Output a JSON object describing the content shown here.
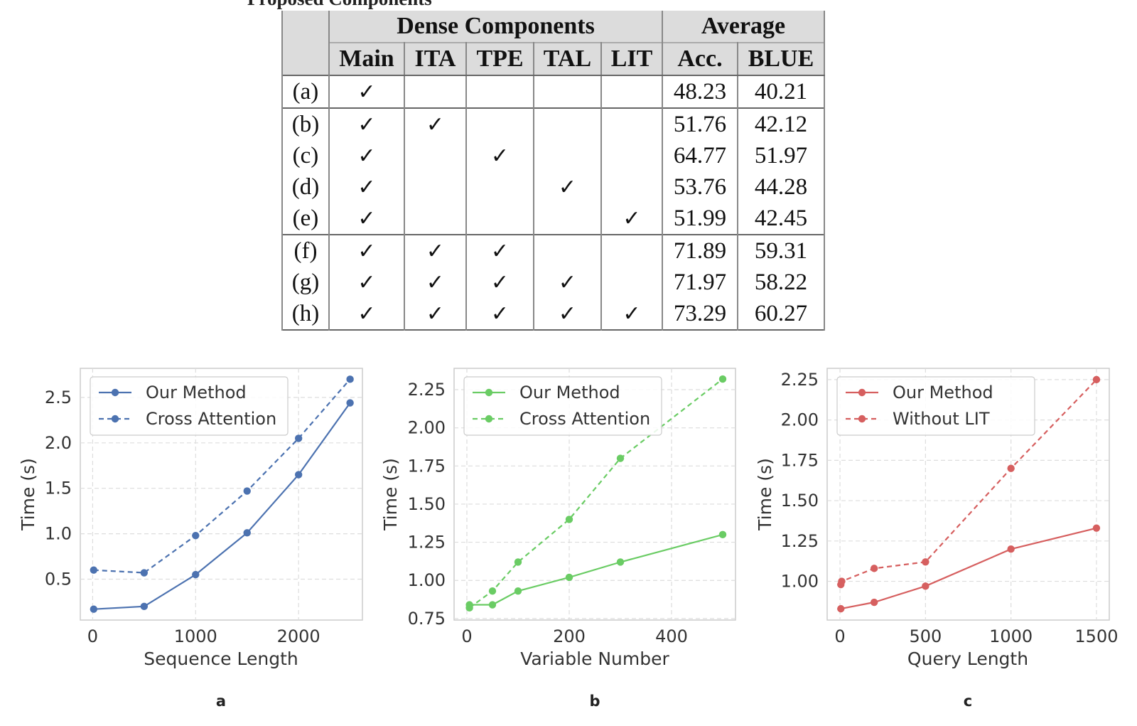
{
  "table": {
    "cut_title": "Proposed Components",
    "group_headers": [
      "Dense Components",
      "Average"
    ],
    "columns": [
      "Main",
      "ITA",
      "TPE",
      "TAL",
      "LIT",
      "Acc.",
      "BLUE"
    ],
    "check_glyph": "✓",
    "rows": [
      {
        "label": "(a)",
        "checks": [
          true,
          false,
          false,
          false,
          false
        ],
        "acc": "48.23",
        "blue": "40.21",
        "bold": false
      },
      {
        "label": "(b)",
        "checks": [
          true,
          true,
          false,
          false,
          false
        ],
        "acc": "51.76",
        "blue": "42.12",
        "bold": false
      },
      {
        "label": "(c)",
        "checks": [
          true,
          false,
          true,
          false,
          false
        ],
        "acc": "64.77",
        "blue": "51.97",
        "bold": false
      },
      {
        "label": "(d)",
        "checks": [
          true,
          false,
          false,
          true,
          false
        ],
        "acc": "53.76",
        "blue": "44.28",
        "bold": false
      },
      {
        "label": "(e)",
        "checks": [
          true,
          false,
          false,
          false,
          true
        ],
        "acc": "51.99",
        "blue": "42.45",
        "bold": false
      },
      {
        "label": "(f)",
        "checks": [
          true,
          true,
          true,
          false,
          false
        ],
        "acc": "71.89",
        "blue": "59.31",
        "bold": false
      },
      {
        "label": "(g)",
        "checks": [
          true,
          true,
          true,
          true,
          false
        ],
        "acc": "71.97",
        "blue": "58.22",
        "bold": false
      },
      {
        "label": "(h)",
        "checks": [
          true,
          true,
          true,
          true,
          true
        ],
        "acc": "73.29",
        "blue": "60.27",
        "bold": true
      }
    ]
  },
  "chart_data": [
    {
      "type": "line",
      "panel_label": "a",
      "xlabel": "Sequence Length",
      "ylabel": "Time (s)",
      "xlim": [
        -120,
        2620
      ],
      "ylim": [
        0.05,
        2.82
      ],
      "xticks": [
        0,
        1000,
        2000
      ],
      "xtick_labels": [
        "0",
        "1000",
        "2000"
      ],
      "yticks": [
        0.5,
        1.0,
        1.5,
        2.0,
        2.5
      ],
      "ytick_labels": [
        "0.5",
        "1.0",
        "1.5",
        "2.0",
        "2.5"
      ],
      "grid": true,
      "legend_position": "top-left",
      "color": "#4c72b0",
      "series": [
        {
          "name": "Our Method",
          "style": "solid",
          "x": [
            10,
            500,
            1000,
            1500,
            2000,
            2500
          ],
          "y": [
            0.17,
            0.2,
            0.55,
            1.01,
            1.65,
            2.44
          ]
        },
        {
          "name": "Cross Attention",
          "style": "dashed",
          "x": [
            10,
            500,
            1000,
            1500,
            2000,
            2500
          ],
          "y": [
            0.6,
            0.57,
            0.98,
            1.47,
            2.05,
            2.7
          ]
        }
      ]
    },
    {
      "type": "line",
      "panel_label": "b",
      "xlabel": "Variable Number",
      "ylabel": "Time (s)",
      "xlim": [
        -25,
        525
      ],
      "ylim": [
        0.74,
        2.39
      ],
      "xticks": [
        0,
        200,
        400
      ],
      "xtick_labels": [
        "0",
        "200",
        "400"
      ],
      "yticks": [
        0.75,
        1.0,
        1.25,
        1.5,
        1.75,
        2.0,
        2.25
      ],
      "ytick_labels": [
        "0.75",
        "1.00",
        "1.25",
        "1.50",
        "1.75",
        "2.00",
        "2.25"
      ],
      "grid": true,
      "legend_position": "top-left",
      "color": "#6acc64",
      "series": [
        {
          "name": "Our Method",
          "style": "solid",
          "x": [
            5,
            50,
            100,
            200,
            300,
            500
          ],
          "y": [
            0.84,
            0.84,
            0.93,
            1.02,
            1.12,
            1.3
          ]
        },
        {
          "name": "Cross Attention",
          "style": "dashed",
          "x": [
            5,
            50,
            100,
            200,
            300,
            500
          ],
          "y": [
            0.82,
            0.93,
            1.12,
            1.4,
            1.8,
            2.32
          ]
        }
      ]
    },
    {
      "type": "line",
      "panel_label": "c",
      "xlabel": "Query Length",
      "ylabel": "Time (s)",
      "xlim": [
        -75,
        1575
      ],
      "ylim": [
        0.76,
        2.32
      ],
      "xticks": [
        0,
        500,
        1000,
        1500
      ],
      "xtick_labels": [
        "0",
        "500",
        "1000",
        "1500"
      ],
      "yticks": [
        1.0,
        1.25,
        1.5,
        1.75,
        2.0,
        2.25
      ],
      "ytick_labels": [
        "1.00",
        "1.25",
        "1.50",
        "1.75",
        "2.00",
        "2.25"
      ],
      "grid": true,
      "legend_position": "top-left",
      "color": "#d65f5f",
      "series": [
        {
          "name": "Our Method",
          "style": "solid",
          "x": [
            5,
            200,
            500,
            1000,
            1500
          ],
          "y": [
            0.83,
            0.87,
            0.97,
            1.2,
            1.33
          ]
        },
        {
          "name": "Without LIT",
          "style": "dashed",
          "x": [
            5,
            10,
            200,
            500,
            1000,
            1500
          ],
          "y": [
            0.98,
            1.0,
            1.08,
            1.12,
            1.7,
            2.25
          ]
        }
      ]
    }
  ]
}
